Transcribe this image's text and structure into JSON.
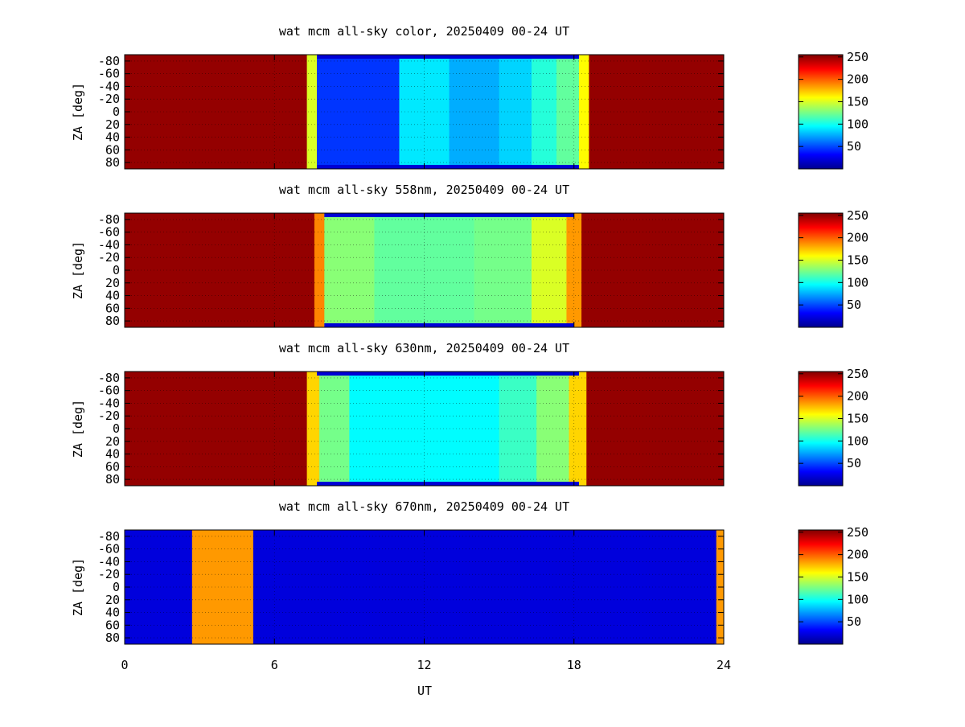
{
  "chart_data": {
    "type": "heatmap",
    "xlabel": "UT",
    "ylabel": "ZA [deg]",
    "xlim": [
      0,
      24
    ],
    "ylim": [
      -90,
      90
    ],
    "x_ticks": [
      0,
      6,
      12,
      18,
      24
    ],
    "y_ticks": [
      -80,
      -60,
      -40,
      -20,
      0,
      20,
      40,
      60,
      80
    ],
    "y_tick_labels": [
      "-80",
      "-60",
      "-40",
      "-20",
      "0",
      "20",
      "40",
      "60",
      "80"
    ],
    "grid": true,
    "colorbar": {
      "range": [
        0,
        255
      ],
      "ticks": [
        50,
        100,
        150,
        200,
        250
      ],
      "colormap": "jet"
    },
    "panels": [
      {
        "title": "wat mcm all-sky color, 20250409 00-24 UT",
        "saturated_value": 250,
        "dark_interval_ut": [
          7.7,
          18.2
        ],
        "segments": [
          {
            "ut": [
              0.0,
              7.3
            ],
            "value": 250
          },
          {
            "ut": [
              7.3,
              7.7
            ],
            "value": 150
          },
          {
            "ut": [
              7.7,
              11.0
            ],
            "value": 45
          },
          {
            "ut": [
              11.0,
              13.0
            ],
            "value": 90
          },
          {
            "ut": [
              13.0,
              15.0
            ],
            "value": 75
          },
          {
            "ut": [
              15.0,
              16.3
            ],
            "value": 85
          },
          {
            "ut": [
              16.3,
              17.3
            ],
            "value": 105
          },
          {
            "ut": [
              17.3,
              18.2
            ],
            "value": 120
          },
          {
            "ut": [
              18.2,
              18.6
            ],
            "value": 160
          },
          {
            "ut": [
              18.6,
              24.0
            ],
            "value": 250
          }
        ]
      },
      {
        "title": "wat mcm all-sky 558nm, 20250409 00-24 UT",
        "saturated_value": 250,
        "dark_interval_ut": [
          8.0,
          18.0
        ],
        "segments": [
          {
            "ut": [
              0.0,
              7.6
            ],
            "value": 250
          },
          {
            "ut": [
              7.6,
              8.0
            ],
            "value": 190
          },
          {
            "ut": [
              8.0,
              10.0
            ],
            "value": 130
          },
          {
            "ut": [
              10.0,
              14.0
            ],
            "value": 120
          },
          {
            "ut": [
              14.0,
              16.3
            ],
            "value": 125
          },
          {
            "ut": [
              16.3,
              17.7
            ],
            "value": 150
          },
          {
            "ut": [
              17.7,
              18.3
            ],
            "value": 185
          },
          {
            "ut": [
              18.3,
              24.0
            ],
            "value": 250
          }
        ]
      },
      {
        "title": "wat mcm all-sky 630nm, 20250409 00-24 UT",
        "saturated_value": 250,
        "dark_interval_ut": [
          7.7,
          18.2
        ],
        "segments": [
          {
            "ut": [
              0.0,
              7.3
            ],
            "value": 250
          },
          {
            "ut": [
              7.3,
              7.8
            ],
            "value": 170
          },
          {
            "ut": [
              7.8,
              9.0
            ],
            "value": 125
          },
          {
            "ut": [
              9.0,
              15.0
            ],
            "value": 95
          },
          {
            "ut": [
              15.0,
              16.5
            ],
            "value": 110
          },
          {
            "ut": [
              16.5,
              17.8
            ],
            "value": 130
          },
          {
            "ut": [
              17.8,
              18.5
            ],
            "value": 170
          },
          {
            "ut": [
              18.5,
              24.0
            ],
            "value": 250
          }
        ]
      },
      {
        "title": "wat mcm all-sky 670nm, 20250409 00-24 UT",
        "segments": [
          {
            "ut": [
              0.0,
              2.7
            ],
            "value": 22
          },
          {
            "ut": [
              2.7,
              5.15
            ],
            "value": 185
          },
          {
            "ut": [
              5.15,
              23.7
            ],
            "value": 22
          },
          {
            "ut": [
              23.7,
              24.0
            ],
            "value": 185
          }
        ]
      }
    ]
  }
}
